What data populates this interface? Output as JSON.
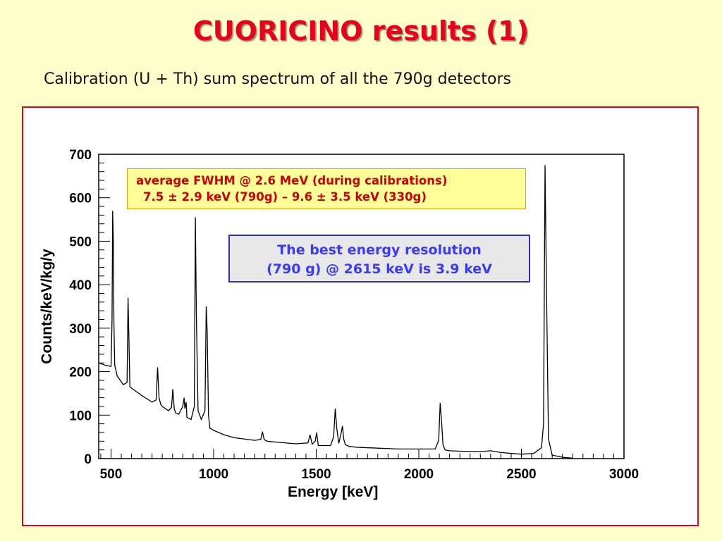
{
  "slide": {
    "title": "CUORICINO results (1)",
    "subtitle": "Calibration (U + Th) sum spectrum of all the 790g detectors"
  },
  "annotations": {
    "fwhm_line1": "average  FWHM @ 2.6 MeV (during calibrations)",
    "fwhm_line2": "7.5 ± 2.9 keV (790g) – 9.6 ± 3.5 keV (330g)",
    "best_line1": "The best energy resolution",
    "best_line2": "(790 g) @ 2615 keV is 3.9 keV"
  },
  "colors": {
    "title": "#e8001c",
    "frame": "#e8001c",
    "fwhm_text": "#cc0000",
    "best_text": "#3a3aff",
    "spectrum": "#000000"
  },
  "chart_data": {
    "type": "line",
    "title": "",
    "xlabel": "Energy [keV]",
    "ylabel": "Counts/keV/kg/y",
    "xlim": [
      440,
      3000
    ],
    "ylim": [
      0,
      700
    ],
    "xticks": [
      500,
      1000,
      1500,
      2000,
      2500,
      3000
    ],
    "yticks": [
      0,
      100,
      200,
      300,
      400,
      500,
      600,
      700
    ],
    "grid": false,
    "legend": "none",
    "series": [
      {
        "x": [
          440,
          470,
          500,
          505,
          508,
          511,
          514,
          518,
          530,
          560,
          578,
          583,
          587,
          592,
          600,
          650,
          700,
          720,
          727,
          734,
          742,
          750,
          780,
          795,
          801,
          808,
          815,
          830,
          850,
          856,
          860,
          866,
          870,
          890,
          906,
          911,
          916,
          924,
          940,
          958,
          964,
          969,
          975,
          982,
          1000,
          1050,
          1100,
          1200,
          1230,
          1238,
          1246,
          1260,
          1300,
          1400,
          1460,
          1470,
          1480,
          1495,
          1502,
          1510,
          1530,
          1570,
          1585,
          1593,
          1600,
          1610,
          1622,
          1628,
          1634,
          1642,
          1660,
          1700,
          1800,
          1900,
          2000,
          2080,
          2097,
          2104,
          2111,
          2118,
          2128,
          2150,
          2200,
          2300,
          2350,
          2400,
          2500,
          2560,
          2598,
          2608,
          2615,
          2622,
          2632,
          2650,
          2700,
          2750
        ],
        "y": [
          220,
          215,
          212,
          320,
          570,
          500,
          320,
          215,
          190,
          170,
          175,
          370,
          280,
          165,
          162,
          145,
          130,
          135,
          210,
          140,
          125,
          120,
          110,
          118,
          160,
          115,
          105,
          102,
          120,
          140,
          115,
          130,
          95,
          90,
          120,
          555,
          330,
          110,
          90,
          110,
          350,
          290,
          100,
          70,
          65,
          55,
          48,
          42,
          44,
          62,
          44,
          40,
          38,
          34,
          36,
          55,
          33,
          40,
          60,
          30,
          30,
          30,
          50,
          115,
          70,
          35,
          60,
          75,
          45,
          32,
          28,
          26,
          24,
          22,
          22,
          22,
          42,
          128,
          85,
          32,
          20,
          18,
          17,
          16,
          18,
          14,
          10,
          12,
          25,
          80,
          675,
          400,
          45,
          8,
          3,
          1
        ]
      }
    ]
  }
}
